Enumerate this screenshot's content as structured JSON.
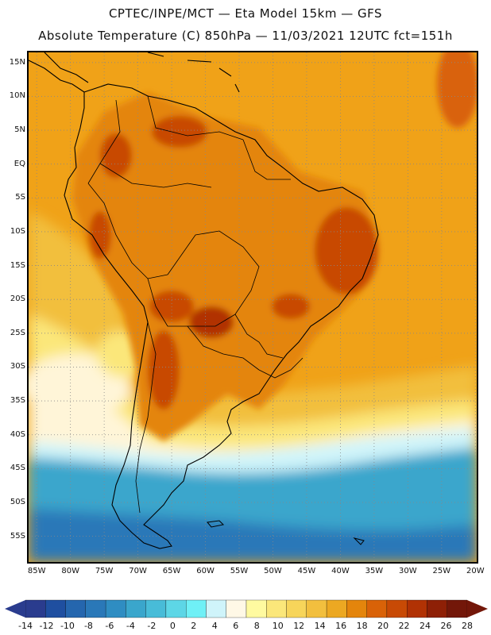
{
  "header": {
    "title_line1": "CPTEC/INPE/MCT —  Eta Model 15km — GFS",
    "title_line2": "Absolute Temperature (C) 850hPa — 11/03/2021 12UTC fct=151h"
  },
  "map": {
    "lat_labels": [
      "15N",
      "10N",
      "5N",
      "EQ",
      "5S",
      "10S",
      "15S",
      "20S",
      "25S",
      "30S",
      "35S",
      "40S",
      "45S",
      "50S",
      "55S"
    ],
    "lon_labels": [
      "85W",
      "80W",
      "75W",
      "70W",
      "65W",
      "60W",
      "55W",
      "50W",
      "45W",
      "40W",
      "35W",
      "30W",
      "25W",
      "20W"
    ],
    "lat_values": [
      15,
      10,
      5,
      0,
      -5,
      -10,
      -15,
      -20,
      -25,
      -30,
      -35,
      -40,
      -45,
      -50,
      -55
    ],
    "lon_values": [
      -85,
      -80,
      -75,
      -70,
      -65,
      -60,
      -55,
      -50,
      -45,
      -40,
      -35,
      -30,
      -25,
      -20
    ],
    "extent": {
      "west": -86.2,
      "east": -19.8,
      "north": 16.5,
      "south": -58.8
    },
    "grid": "dotted"
  },
  "colorbar": {
    "labels": [
      "-14",
      "-12",
      "-10",
      "-8",
      "-6",
      "-4",
      "-2",
      "0",
      "2",
      "4",
      "6",
      "8",
      "10",
      "12",
      "14",
      "16",
      "18",
      "20",
      "22",
      "24",
      "26",
      "28"
    ],
    "colors": [
      "#2a3c8e",
      "#1f4fa0",
      "#2566ae",
      "#2a78b8",
      "#2f8dc2",
      "#3aa6cc",
      "#48bcd8",
      "#5dd6e6",
      "#6ff0f6",
      "#cff4fa",
      "#fff8e6",
      "#fffaa0",
      "#fbe77a",
      "#f7d55a",
      "#f2bf3e",
      "#eca822",
      "#e4850c",
      "#d96208",
      "#c84a05",
      "#b13204",
      "#8e2006",
      "#731709"
    ]
  },
  "colors": {
    "ocean_warm": "#f0a218",
    "ocean_mild": "#f2bf3e",
    "ocean_cool": "#fbe77a",
    "land_warm": "#e4850c",
    "land_hot": "#c84a05",
    "south_cold": "#3aa6cc",
    "deep_cold": "#2a78b8"
  }
}
